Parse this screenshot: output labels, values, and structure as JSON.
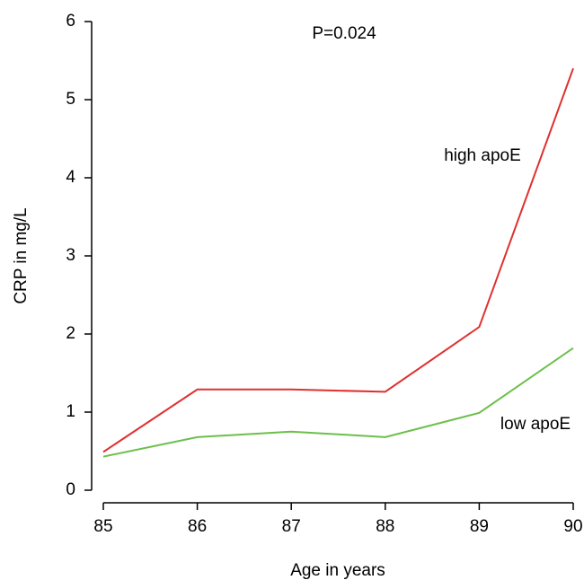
{
  "chart_data": {
    "type": "line",
    "annotation": "P=0.024",
    "x_label": "Age in years",
    "y_label": "CRP in mg/L",
    "x": [
      85,
      86,
      87,
      88,
      89,
      90
    ],
    "series": [
      {
        "name": "high apoE",
        "color": "#e03030",
        "values": [
          0.49,
          1.29,
          1.29,
          1.26,
          2.09,
          5.4
        ]
      },
      {
        "name": "low apoE",
        "color": "#6cbf4a",
        "values": [
          0.43,
          0.68,
          0.75,
          0.68,
          0.99,
          1.82
        ]
      }
    ],
    "xlim": [
      85,
      90
    ],
    "xticks": [
      85,
      86,
      87,
      88,
      89,
      90
    ],
    "ylim": [
      0,
      6
    ],
    "yticks": [
      0,
      1,
      2,
      3,
      4,
      5,
      6
    ],
    "grid": false
  }
}
